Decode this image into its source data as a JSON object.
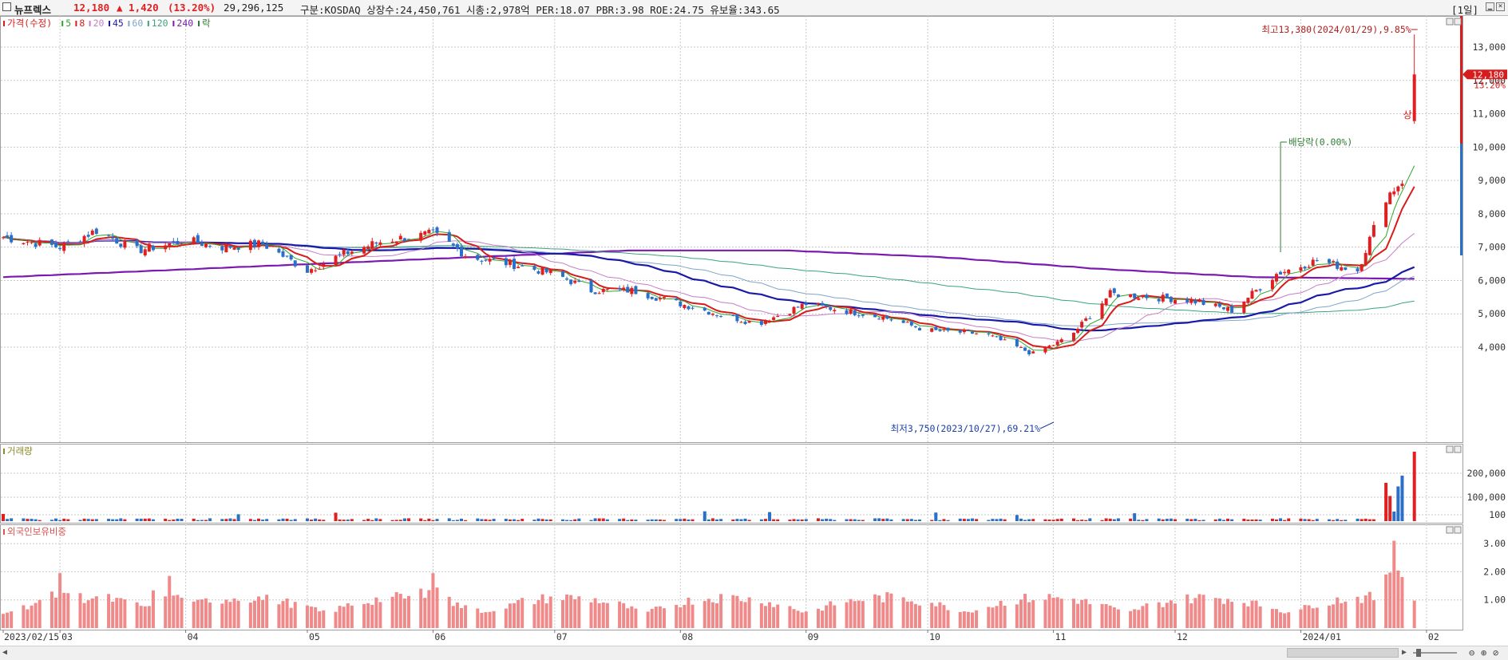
{
  "header": {
    "name": "뉴프렉스",
    "price": "12,180",
    "change": "▲ 1,420",
    "change_pct": "(13.20%)",
    "volume": "29,296,125",
    "info": "구분:KOSDAQ 상장수:24,450,761 시총:2,978억 PER:18.07 PBR:3.98 ROE:24.75 유보율:343.65",
    "period": "[1일]"
  },
  "price_panel": {
    "legend": [
      {
        "label": "가격(수정)",
        "color": "#d81b1b"
      },
      {
        "label": "5",
        "color": "#2fa52f"
      },
      {
        "label": "8",
        "color": "#d81b1b"
      },
      {
        "label": "20",
        "color": "#c77dc7"
      },
      {
        "label": "45",
        "color": "#1a1aa8"
      },
      {
        "label": "60",
        "color": "#7fa5c8"
      },
      {
        "label": "120",
        "color": "#39a37f"
      },
      {
        "label": "240",
        "color": "#7a1ab0"
      },
      {
        "label": "락",
        "color": "#2e7d32"
      }
    ],
    "high_note": "최고13,380(2024/01/29),9.85%",
    "low_note": "최저3,750(2023/10/27),69.21%",
    "dividend_note": "배당락(0.00%)",
    "limit_up_note": "상",
    "current_price_tag": "12,180",
    "current_pct_tag": "13.20%"
  },
  "volume_panel": {
    "legend": "거래량",
    "legend_color": "#8a8a2a"
  },
  "foreign_panel": {
    "legend": "외국인보유비중",
    "legend_color": "#d9534f"
  },
  "colors": {
    "up": "#e02020",
    "down": "#2a6fc8",
    "grid": "#c8c8c8"
  },
  "chart_data": [
    {
      "type": "candlestick",
      "title": "뉴프렉스",
      "ylim": [
        3500,
        14000
      ],
      "y_ticks": [
        "13,000",
        "12,000",
        "11,000",
        "10,000",
        "9,000",
        "8,000",
        "7,000",
        "6,000",
        "5,000",
        "4,000"
      ],
      "x_labels": [
        "2023/02/15",
        "03",
        "04",
        "05",
        "06",
        "07",
        "08",
        "09",
        "10",
        "11",
        "12",
        "2024/01",
        "02"
      ],
      "close_path": [
        [
          "2023-02-15",
          7300
        ],
        [
          "2023-03-01",
          7000
        ],
        [
          "2023-03-10",
          7500
        ],
        [
          "2023-03-20",
          6900
        ],
        [
          "2023-04-01",
          7200
        ],
        [
          "2023-04-10",
          7000
        ],
        [
          "2023-04-20",
          7100
        ],
        [
          "2023-05-01",
          6300
        ],
        [
          "2023-05-10",
          6800
        ],
        [
          "2023-05-20",
          7200
        ],
        [
          "2023-06-01",
          7400
        ],
        [
          "2023-06-10",
          6700
        ],
        [
          "2023-06-20",
          6500
        ],
        [
          "2023-07-01",
          6200
        ],
        [
          "2023-07-10",
          5700
        ],
        [
          "2023-07-20",
          5700
        ],
        [
          "2023-08-01",
          5300
        ],
        [
          "2023-08-10",
          5000
        ],
        [
          "2023-08-20",
          4700
        ],
        [
          "2023-09-01",
          5300
        ],
        [
          "2023-09-10",
          5100
        ],
        [
          "2023-09-20",
          4900
        ],
        [
          "2023-10-01",
          4500
        ],
        [
          "2023-10-15",
          4400
        ],
        [
          "2023-10-27",
          3800
        ],
        [
          "2023-11-05",
          4300
        ],
        [
          "2023-11-15",
          5600
        ],
        [
          "2023-11-25",
          5500
        ],
        [
          "2023-12-05",
          5400
        ],
        [
          "2023-12-15",
          5100
        ],
        [
          "2023-12-26",
          6200
        ],
        [
          "2024-01-05",
          6600
        ],
        [
          "2024-01-15",
          6300
        ],
        [
          "2024-01-22",
          8500
        ],
        [
          "2024-01-26",
          9000
        ],
        [
          "2024-01-29",
          12180
        ]
      ],
      "ma_last_values": {
        "5": 9500,
        "8": 8700,
        "20": 7400,
        "45": 6400,
        "60": 6050,
        "120": 5400,
        "240": 6050
      },
      "ma_240_path": [
        6100,
        6300,
        6500,
        6700,
        6900,
        6900,
        6700,
        6350,
        6100,
        6050
      ],
      "ma_45_path": [
        7100,
        7200,
        6900,
        6500,
        5900,
        5100,
        4600,
        4700,
        5400,
        6400
      ]
    },
    {
      "type": "bar",
      "title": "거래량",
      "y_ticks": [
        "200,000",
        "100,000",
        "100"
      ],
      "recent_values": [
        {
          "date": "2024-01-22",
          "value": 160000,
          "dir": "up"
        },
        {
          "date": "2024-01-23",
          "value": 105000,
          "dir": "up"
        },
        {
          "date": "2024-01-24",
          "value": 40000,
          "dir": "down"
        },
        {
          "date": "2024-01-25",
          "value": 145000,
          "dir": "down"
        },
        {
          "date": "2024-01-26",
          "value": 190000,
          "dir": "down"
        },
        {
          "date": "2024-01-29",
          "value": 290000,
          "dir": "up"
        }
      ],
      "typical_value": 8000
    },
    {
      "type": "bar",
      "title": "외국인보유비중",
      "y_ticks": [
        "3.00",
        "2.00",
        "1.00"
      ],
      "peaks": [
        {
          "date": "2023-03-01",
          "value": 1.95
        },
        {
          "date": "2023-03-28",
          "value": 1.85
        },
        {
          "date": "2023-06-01",
          "value": 1.95
        },
        {
          "date": "2024-01-24",
          "value": 3.1
        }
      ],
      "typical_range": [
        0.3,
        1.4
      ]
    }
  ]
}
